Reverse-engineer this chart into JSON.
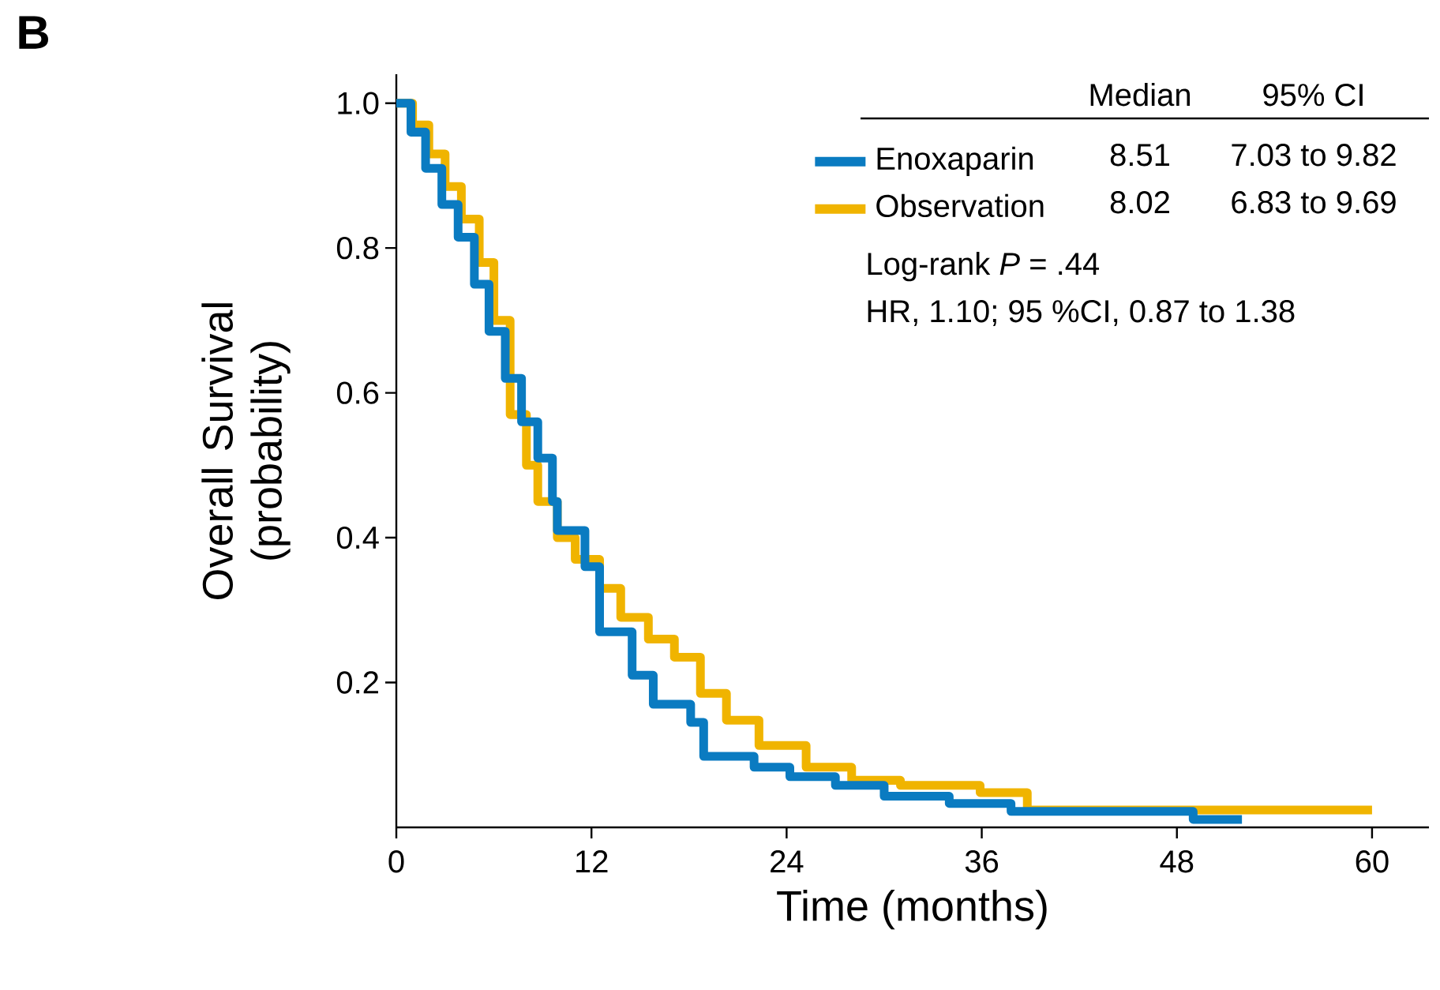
{
  "chart_data": {
    "type": "step",
    "title": "B",
    "xlabel": "Time (months)",
    "ylabel": "Overall Survival (probability)",
    "xlim": [
      0,
      63.5
    ],
    "ylim": [
      0,
      1.04
    ],
    "xticks": [
      0,
      12,
      24,
      36,
      48,
      60
    ],
    "yticks": [
      0.2,
      0.4,
      0.6,
      0.8,
      {
        "value": 1,
        "label": "1.0"
      }
    ],
    "grid": false,
    "legend": "top right",
    "marker": "none",
    "line_style": "solid",
    "series": [
      {
        "name": "Enoxaparin",
        "color": "#0a7bc1",
        "x": [
          0,
          0.9,
          1.8,
          2.8,
          3.8,
          4.8,
          5.7,
          6.7,
          7.7,
          8.7,
          9.6,
          9.9,
          11.6,
          12.5,
          14.5,
          15.8,
          18.1,
          18.9,
          22,
          24.2,
          27,
          30,
          34,
          37.8,
          49,
          52
        ],
        "values": [
          1,
          0.96,
          0.91,
          0.86,
          0.815,
          0.75,
          0.685,
          0.62,
          0.56,
          0.51,
          0.45,
          0.41,
          0.36,
          0.27,
          0.21,
          0.17,
          0.145,
          0.098,
          0.083,
          0.07,
          0.058,
          0.043,
          0.033,
          0.022,
          0.011,
          0.011
        ]
      },
      {
        "name": "Observation",
        "color": "#f0b400",
        "x": [
          0,
          1,
          2,
          3,
          4,
          5.1,
          6,
          7,
          8,
          8.7,
          9.9,
          11,
          12.5,
          13.8,
          15.5,
          17.1,
          18.7,
          20.3,
          22.3,
          25.2,
          28,
          31,
          35.9,
          38.8,
          60
        ],
        "values": [
          1,
          0.97,
          0.93,
          0.885,
          0.84,
          0.78,
          0.7,
          0.57,
          0.5,
          0.45,
          0.4,
          0.37,
          0.33,
          0.29,
          0.26,
          0.235,
          0.185,
          0.148,
          0.113,
          0.083,
          0.065,
          0.058,
          0.048,
          0.024,
          0.024
        ]
      }
    ],
    "annotations": [
      "Median",
      "95% CI",
      "8.51",
      "7.03 to 9.82",
      "8.02",
      "6.83 to 9.69",
      "Log-rank *P* = .44",
      "HR, 1.10; 95 %CI, 0.87 to 1.38"
    ]
  }
}
